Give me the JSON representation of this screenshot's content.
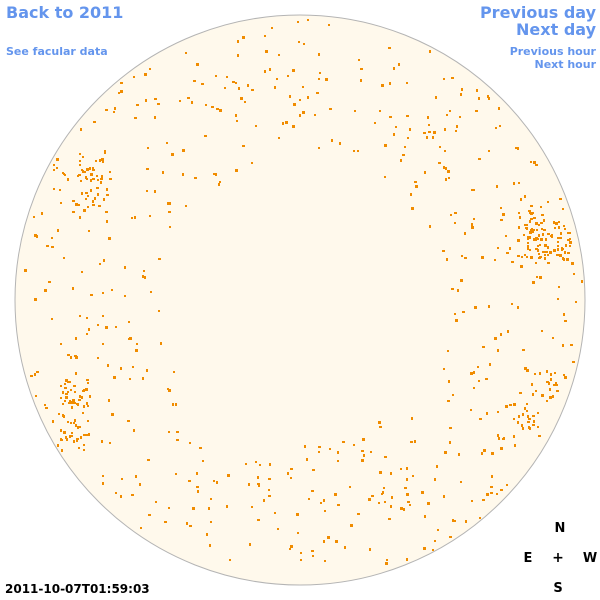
{
  "nav": {
    "back_label": "Back to 2011",
    "facular_label": "See facular data",
    "prev_day_label": "Previous day",
    "next_day_label": "Next day",
    "prev_hour_label": "Previous hour",
    "next_hour_label": "Next hour"
  },
  "compass": {
    "north": "N",
    "south": "S",
    "east": "E",
    "west": "W",
    "center": "+"
  },
  "timestamp": "2011-10-07T01:59:03",
  "colors": {
    "link": "#6495ed",
    "disk_fill": "#fff9ec",
    "disk_stroke": "#b4b4b4",
    "facula": "#f08c00"
  }
}
